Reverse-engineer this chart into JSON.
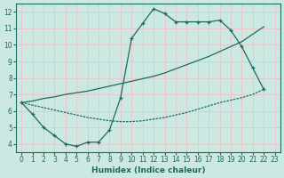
{
  "xlabel": "Humidex (Indice chaleur)",
  "bg_color": "#cce8e2",
  "grid_color": "#e8c8c8",
  "line_color": "#1a6b5e",
  "xlim": [
    -0.5,
    23.5
  ],
  "ylim": [
    3.5,
    12.5
  ],
  "xticks": [
    0,
    1,
    2,
    3,
    4,
    5,
    6,
    7,
    8,
    9,
    10,
    11,
    12,
    13,
    14,
    15,
    16,
    17,
    18,
    19,
    20,
    21,
    22,
    23
  ],
  "yticks": [
    4,
    5,
    6,
    7,
    8,
    9,
    10,
    11,
    12
  ],
  "line1_x": [
    0,
    1,
    2,
    3,
    4,
    5,
    6,
    7,
    8,
    9,
    10,
    11,
    12,
    13,
    14,
    15,
    16,
    17,
    18,
    19,
    20,
    21,
    22
  ],
  "line1_y": [
    6.5,
    5.8,
    5.0,
    4.5,
    4.0,
    3.85,
    4.1,
    4.1,
    4.85,
    6.8,
    10.4,
    11.3,
    12.2,
    11.9,
    11.4,
    11.4,
    11.4,
    11.4,
    11.5,
    10.9,
    9.9,
    8.6,
    7.3
  ],
  "line2_x": [
    0,
    1,
    2,
    3,
    4,
    5,
    6,
    7,
    8,
    9,
    10,
    11,
    12,
    13,
    14,
    15,
    16,
    17,
    18,
    19,
    20,
    21,
    22
  ],
  "line2_y": [
    6.5,
    6.6,
    6.75,
    6.85,
    7.0,
    7.1,
    7.2,
    7.35,
    7.5,
    7.65,
    7.8,
    7.95,
    8.1,
    8.3,
    8.55,
    8.8,
    9.05,
    9.3,
    9.6,
    9.9,
    10.2,
    10.65,
    11.1
  ],
  "line3_x": [
    0,
    1,
    2,
    3,
    4,
    5,
    6,
    7,
    8,
    9,
    10,
    11,
    12,
    13,
    14,
    15,
    16,
    17,
    18,
    19,
    20,
    21,
    22
  ],
  "line3_y": [
    6.5,
    6.35,
    6.2,
    6.05,
    5.9,
    5.75,
    5.6,
    5.5,
    5.4,
    5.35,
    5.35,
    5.4,
    5.5,
    5.6,
    5.75,
    5.9,
    6.1,
    6.3,
    6.5,
    6.65,
    6.8,
    7.0,
    7.3
  ]
}
